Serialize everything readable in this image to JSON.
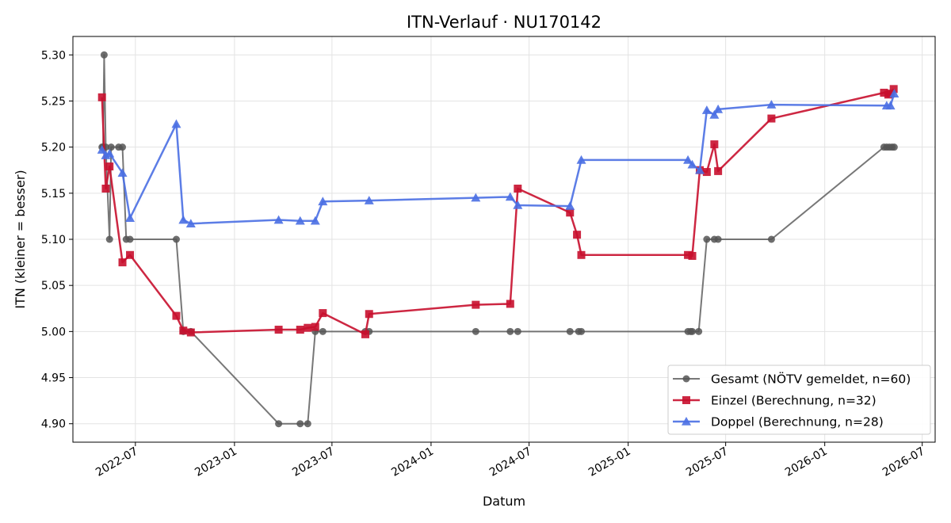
{
  "chart_data": {
    "type": "line",
    "title": "ITN-Verlauf · NU170142",
    "xlabel": "Datum",
    "ylabel": "ITN  (kleiner = besser)",
    "x_axis": "date",
    "xlim": [
      "2022-03-07",
      "2026-07-25"
    ],
    "ylim": [
      4.88,
      5.32
    ],
    "yticks": [
      4.9,
      4.95,
      5.0,
      5.05,
      5.1,
      5.15,
      5.2,
      5.25,
      5.3
    ],
    "ytick_labels": [
      "4.90",
      "4.95",
      "5.00",
      "5.05",
      "5.10",
      "5.15",
      "5.20",
      "5.25",
      "5.30"
    ],
    "xticks": [
      "2022-07-01",
      "2023-01-01",
      "2023-07-01",
      "2024-01-01",
      "2024-07-01",
      "2025-01-01",
      "2025-07-01",
      "2026-01-01",
      "2026-07-01"
    ],
    "xtick_labels": [
      "2022-07",
      "2023-01",
      "2023-07",
      "2024-01",
      "2024-07",
      "2025-01",
      "2025-07",
      "2026-01",
      "2026-07"
    ],
    "grid": true,
    "legend_position": "lower-right",
    "series": [
      {
        "name": "Gesamt (NÖTV gemeldet, n=60)",
        "color": "#555555",
        "marker": "circle",
        "x": [
          "2022-04-30",
          "2022-05-02",
          "2022-05-04",
          "2022-05-07",
          "2022-05-14",
          "2022-05-17",
          "2022-05-31",
          "2022-06-07",
          "2022-06-14",
          "2022-06-21",
          "2022-09-15",
          "2022-09-28",
          "2022-10-12",
          "2023-03-24",
          "2023-05-03",
          "2023-05-17",
          "2023-05-31",
          "2023-06-14",
          "2023-09-01",
          "2023-09-08",
          "2024-03-24",
          "2024-05-27",
          "2024-06-10",
          "2024-09-15",
          "2024-10-01",
          "2024-10-06",
          "2025-04-22",
          "2025-04-27",
          "2025-04-30",
          "2025-05-12",
          "2025-05-27",
          "2025-06-10",
          "2025-06-17",
          "2025-09-24",
          "2026-04-21",
          "2026-04-26",
          "2026-05-01",
          "2026-05-06",
          "2026-05-10"
        ],
        "y": [
          5.2,
          5.2,
          5.3,
          5.2,
          5.1,
          5.2,
          5.2,
          5.2,
          5.1,
          5.1,
          5.1,
          5.0,
          5.0,
          4.9,
          4.9,
          4.9,
          5.0,
          5.0,
          5.0,
          5.0,
          5.0,
          5.0,
          5.0,
          5.0,
          5.0,
          5.0,
          5.0,
          5.0,
          5.0,
          5.0,
          5.1,
          5.1,
          5.1,
          5.1,
          5.2,
          5.2,
          5.2,
          5.2,
          5.2
        ]
      },
      {
        "name": "Einzel (Berechnung, n=32)",
        "color": "#c8102e",
        "marker": "square",
        "x": [
          "2022-04-30",
          "2022-05-07",
          "2022-05-14",
          "2022-06-07",
          "2022-06-21",
          "2022-09-15",
          "2022-09-28",
          "2022-10-12",
          "2023-03-24",
          "2023-05-03",
          "2023-05-17",
          "2023-05-31",
          "2023-06-14",
          "2023-09-01",
          "2023-09-08",
          "2024-03-24",
          "2024-05-27",
          "2024-06-10",
          "2024-09-15",
          "2024-09-28",
          "2024-10-06",
          "2025-04-22",
          "2025-04-30",
          "2025-05-14",
          "2025-05-27",
          "2025-06-10",
          "2025-06-17",
          "2025-09-24",
          "2026-04-21",
          "2026-04-29",
          "2026-05-03",
          "2026-05-09"
        ],
        "y": [
          5.254,
          5.155,
          5.179,
          5.075,
          5.083,
          5.017,
          5.001,
          4.999,
          5.002,
          5.002,
          5.004,
          5.005,
          5.02,
          4.997,
          5.019,
          5.029,
          5.03,
          5.155,
          5.129,
          5.105,
          5.083,
          5.083,
          5.082,
          5.175,
          5.173,
          5.203,
          5.174,
          5.231,
          5.259,
          5.257,
          5.258,
          5.263
        ]
      },
      {
        "name": "Doppel (Berechnung, n=28)",
        "color": "#4a6fe3",
        "marker": "triangle",
        "x": [
          "2022-04-30",
          "2022-05-07",
          "2022-05-14",
          "2022-06-07",
          "2022-06-21",
          "2022-09-15",
          "2022-09-28",
          "2022-10-12",
          "2023-03-24",
          "2023-05-03",
          "2023-05-31",
          "2023-06-14",
          "2023-09-08",
          "2024-03-24",
          "2024-05-27",
          "2024-06-10",
          "2024-09-15",
          "2024-10-06",
          "2025-04-22",
          "2025-04-30",
          "2025-05-14",
          "2025-05-27",
          "2025-06-10",
          "2025-06-17",
          "2025-09-24",
          "2026-04-26",
          "2026-05-03",
          "2026-05-10"
        ],
        "y": [
          5.197,
          5.191,
          5.193,
          5.172,
          5.123,
          5.225,
          5.121,
          5.117,
          5.121,
          5.12,
          5.12,
          5.141,
          5.142,
          5.145,
          5.146,
          5.137,
          5.136,
          5.186,
          5.186,
          5.181,
          5.175,
          5.24,
          5.235,
          5.241,
          5.246,
          5.245,
          5.245,
          5.258
        ]
      }
    ]
  }
}
